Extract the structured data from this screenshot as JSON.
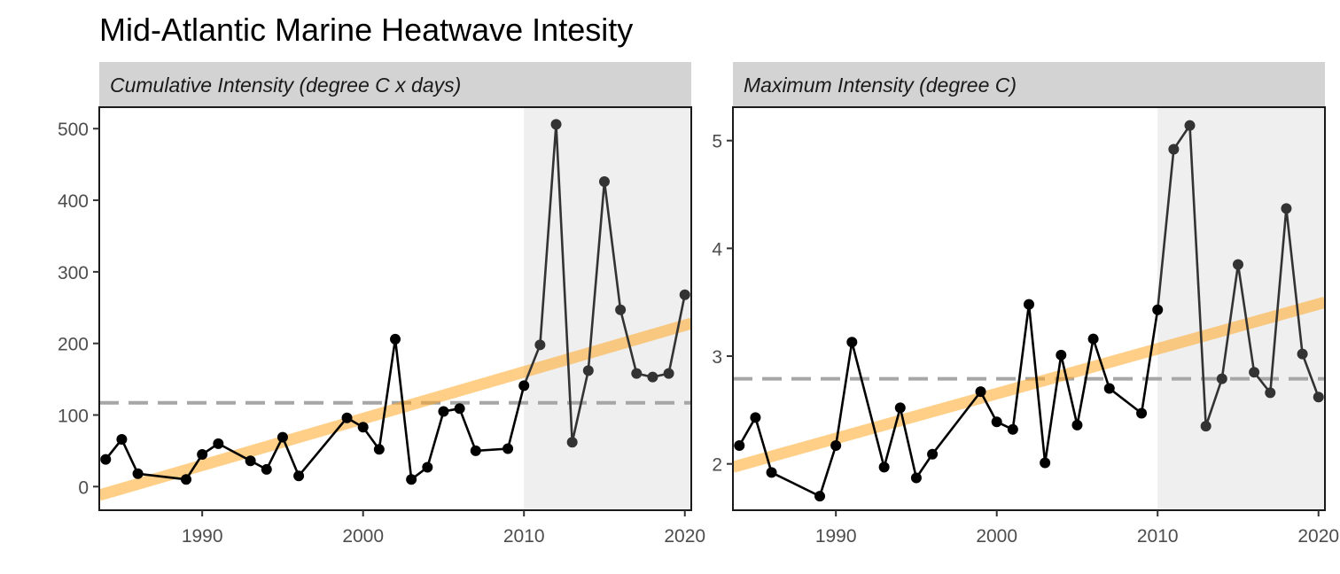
{
  "title": "Mid-Atlantic Marine Heatwave Intesity",
  "colors": {
    "panel_bg": "#ffffff",
    "strip_bg": "#d3d3d3",
    "shade": "#efefef",
    "line": "#000000",
    "line_recent": "#333333",
    "trend": "#ffa726",
    "mean_line": "#a6a6a6"
  },
  "chart_data": [
    {
      "type": "line",
      "title": "Cumulative Intensity (degree C x days)",
      "xlabel": "",
      "ylabel": "",
      "xlim": [
        1983.6,
        2020.4
      ],
      "ylim": [
        -33,
        530
      ],
      "xticks": [
        1990,
        2000,
        2010,
        2020
      ],
      "yticks": [
        0,
        100,
        200,
        300,
        400,
        500
      ],
      "shade_from": 2010,
      "mean": 117,
      "trend": {
        "x": [
          1983.6,
          2020.4
        ],
        "y": [
          -12,
          228
        ]
      },
      "points": {
        "x": [
          1984,
          1985,
          1986,
          1989,
          1990,
          1991,
          1993,
          1994,
          1995,
          1996,
          1999,
          2000,
          2001,
          2002,
          2003,
          2004,
          2005,
          2006,
          2007,
          2009,
          2010,
          2011,
          2012,
          2013,
          2014,
          2015,
          2016,
          2017,
          2018,
          2019,
          2020
        ],
        "y": [
          38,
          66,
          18,
          10,
          45,
          60,
          36,
          24,
          69,
          15,
          96,
          83,
          52,
          206,
          10,
          27,
          105,
          109,
          50,
          53,
          141,
          198,
          506,
          62,
          162,
          426,
          247,
          158,
          153,
          158,
          268
        ]
      },
      "grid": false
    },
    {
      "type": "line",
      "title": "Maximum Intensity (degree C)",
      "xlabel": "",
      "ylabel": "",
      "xlim": [
        1983.6,
        2020.4
      ],
      "ylim": [
        1.57,
        5.31
      ],
      "xticks": [
        1990,
        2000,
        2010,
        2020
      ],
      "yticks": [
        2,
        3,
        4,
        5
      ],
      "shade_from": 2010,
      "mean": 2.79,
      "trend": {
        "x": [
          1983.6,
          2020.4
        ],
        "y": [
          1.97,
          3.5
        ]
      },
      "points": {
        "x": [
          1984,
          1985,
          1986,
          1989,
          1990,
          1991,
          1993,
          1994,
          1995,
          1996,
          1999,
          2000,
          2001,
          2002,
          2003,
          2004,
          2005,
          2006,
          2007,
          2009,
          2010,
          2011,
          2012,
          2013,
          2014,
          2015,
          2016,
          2017,
          2018,
          2019,
          2020
        ],
        "y": [
          2.17,
          2.43,
          1.92,
          1.7,
          2.17,
          3.13,
          1.97,
          2.52,
          1.87,
          2.09,
          2.67,
          2.39,
          2.32,
          3.48,
          2.01,
          3.01,
          2.36,
          3.16,
          2.7,
          2.47,
          3.43,
          4.92,
          5.14,
          2.35,
          2.79,
          3.85,
          2.85,
          2.66,
          4.37,
          3.02,
          2.62
        ]
      },
      "grid": false
    }
  ]
}
